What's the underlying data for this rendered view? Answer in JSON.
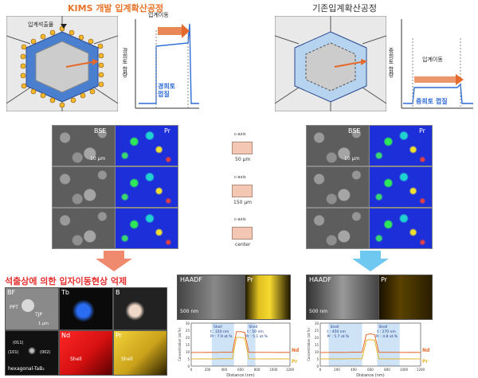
{
  "top": {
    "left_title": "KIMS 개발 입계확산공정",
    "right_title": "기존입계확산공정",
    "left_precipitate_label": "입계석출물",
    "left_move_label": "입계이동",
    "right_move_label": "입계이동",
    "left_axis_label": "경희토 함량",
    "right_axis_label": "중희토 함량",
    "left_shell_label": "경희토 껍질",
    "right_shell_label": "중희토 껍질"
  },
  "mid": {
    "left_bse": "BSE",
    "left_pr": "Pr",
    "left_scale": "10 μm",
    "right_bse": "BSE",
    "right_pr": "Pr",
    "right_scale": "10 μm",
    "cube_axis": "c-axis",
    "cube_labels": [
      "50 μm",
      "150 μm",
      "center"
    ]
  },
  "bottom": {
    "heading": "석출상에 의한 입자이동현상 억제",
    "panels": [
      {
        "label": "BF",
        "sub1": "PPT",
        "sub2": "TJP",
        "scale": "1 μm"
      },
      {
        "label": "Tb"
      },
      {
        "label": "B"
      },
      {
        "label": "",
        "sub1": "(011)",
        "sub2": "(101)",
        "sub3": "(002)",
        "sub4": "hexagonal-TaB₂"
      },
      {
        "label": "Nd",
        "sub1": "Shell"
      },
      {
        "label": "Pr",
        "sub1": "Shell"
      }
    ],
    "left_haadf": "HAADF",
    "left_haadf_scale": "500 nm",
    "left_pr": "Pr",
    "right_haadf": "HAADF",
    "right_haadf_scale": "500 nm",
    "right_pr": "Pr"
  },
  "chart_data": [
    {
      "type": "line",
      "xlabel": "Distance (nm)",
      "ylabel": "Concentration (at.%)",
      "xlim": [
        0,
        1200
      ],
      "ylim": [
        0,
        30
      ],
      "x_ticks": [
        "0",
        "100",
        "200",
        "300",
        "400",
        "500",
        "600",
        "700",
        "800",
        "900",
        "1000",
        "1100",
        "1200"
      ],
      "y_ticks": [
        "0",
        "5",
        "10",
        "15",
        "20",
        "25",
        "30"
      ],
      "annotations": [
        "Shell",
        "t : 310 nm",
        "Pr : 7.9 at.%",
        "Shell",
        "t : 50 nm",
        "Pr : 5.1 at.%"
      ],
      "series": [
        {
          "name": "Nd",
          "color": "#e46a2c",
          "x": [
            0,
            100,
            200,
            300,
            400,
            500,
            550,
            600,
            650,
            700,
            800,
            900,
            1000,
            1100,
            1200
          ],
          "values": [
            9.5,
            9.5,
            9.6,
            9.5,
            9.7,
            9.6,
            24,
            24,
            23.5,
            9.6,
            9.6,
            9.6,
            9.5,
            9.6,
            9.5
          ]
        },
        {
          "name": "Pr",
          "color": "#e6b42a",
          "x": [
            0,
            100,
            200,
            300,
            400,
            500,
            550,
            600,
            650,
            700,
            800,
            900,
            1000,
            1100,
            1200
          ],
          "values": [
            5,
            5,
            5,
            5,
            5.2,
            5.1,
            20,
            20,
            19.5,
            5.1,
            5,
            5,
            5,
            5,
            5
          ]
        }
      ]
    },
    {
      "type": "line",
      "xlabel": "Distance (nm)",
      "ylabel": "Concentration (at.%)",
      "xlim": [
        0,
        1200
      ],
      "ylim": [
        0,
        30
      ],
      "x_ticks": [
        "0",
        "100",
        "200",
        "300",
        "400",
        "500",
        "600",
        "700",
        "800",
        "900",
        "1000",
        "1100",
        "1200"
      ],
      "y_ticks": [
        "0",
        "5",
        "10",
        "15",
        "20",
        "25",
        "30"
      ],
      "annotations": [
        "Shell",
        "t : 450 nm",
        "Pr : 5.7 at.%",
        "Shell",
        "t : 270 nm",
        "Pr : 4.8 at.%"
      ],
      "series": [
        {
          "name": "Nd",
          "color": "#e46a2c",
          "x": [
            0,
            100,
            200,
            300,
            400,
            500,
            550,
            600,
            650,
            700,
            800,
            900,
            1000,
            1100,
            1200
          ],
          "values": [
            9.5,
            9.5,
            9.6,
            9.5,
            9.7,
            9.6,
            22,
            22.5,
            22,
            9.6,
            9.6,
            9.6,
            9.5,
            9.6,
            9.5
          ]
        },
        {
          "name": "Pr",
          "color": "#e6b42a",
          "x": [
            0,
            100,
            200,
            300,
            400,
            500,
            550,
            600,
            650,
            700,
            800,
            900,
            1000,
            1100,
            1200
          ],
          "values": [
            5,
            5,
            5,
            5,
            5.2,
            5.1,
            18,
            18.5,
            18,
            5.1,
            5,
            5,
            5,
            5,
            5
          ]
        }
      ]
    }
  ]
}
